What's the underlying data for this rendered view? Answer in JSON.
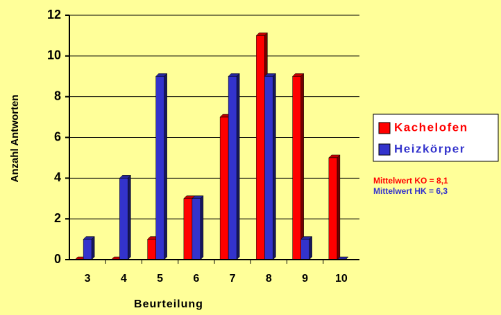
{
  "chart_data": {
    "type": "bar",
    "xlabel": "Beurteilung",
    "ylabel": "Anzahl Antworten",
    "categories": [
      "3",
      "4",
      "5",
      "6",
      "7",
      "8",
      "9",
      "10"
    ],
    "series": [
      {
        "name": "Kachelofen",
        "color": "#ff0000",
        "values": [
          0,
          0,
          1,
          3,
          7,
          11,
          9,
          5
        ]
      },
      {
        "name": "Heizkörper",
        "color": "#3333cc",
        "values": [
          1,
          4,
          9,
          3,
          9,
          9,
          1,
          0
        ]
      }
    ],
    "ylim": [
      0,
      12
    ],
    "yticks": [
      0,
      2,
      4,
      6,
      8,
      10,
      12
    ],
    "grid": true,
    "legend": "right",
    "annotations": [
      {
        "text": "Mittelwert KO = 8,1",
        "color": "#ff0000"
      },
      {
        "text": "Mittelwert HK = 6,3",
        "color": "#3333cc"
      }
    ]
  }
}
